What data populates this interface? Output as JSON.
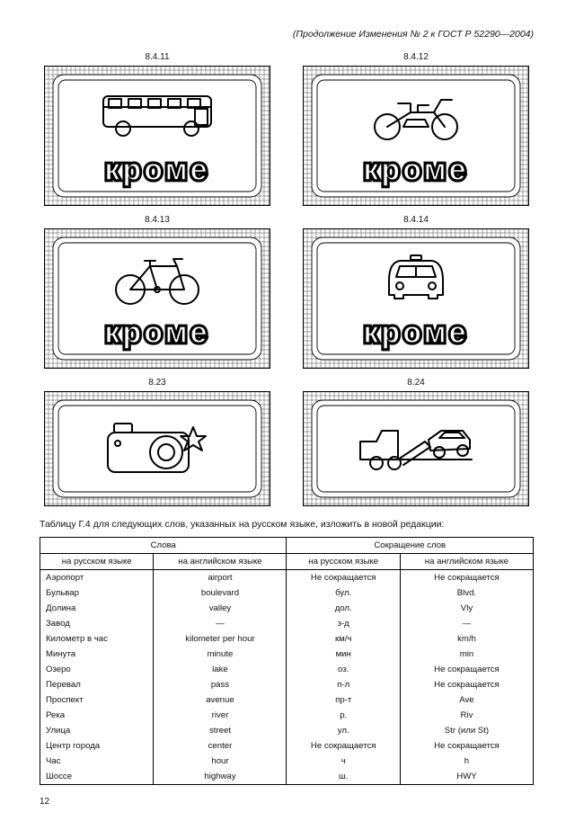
{
  "header": "(Продолжение Изменения № 2 к ГОСТ Р 52290—2004)",
  "page_number": "12",
  "signs": [
    {
      "id": "8.4.11",
      "type": "bus",
      "text": "кроме"
    },
    {
      "id": "8.4.12",
      "type": "moto",
      "text": "кроме"
    },
    {
      "id": "8.4.13",
      "type": "bike",
      "text": "кроме"
    },
    {
      "id": "8.4.14",
      "type": "car",
      "text": "кроме"
    },
    {
      "id": "8.23",
      "type": "camera",
      "text": ""
    },
    {
      "id": "8.24",
      "type": "towtruck",
      "text": ""
    }
  ],
  "table_intro": "Таблицу Г.4 для следующих слов, указанных на русском языке, изложить в новой редакции:",
  "table_headers": {
    "left": "Слова",
    "right": "Сокращение слов",
    "ru": "на русском языке",
    "en": "на английском языке"
  },
  "table_rows": [
    {
      "ru_word": "Аэропорт",
      "en_word": "airport",
      "ru_abbr": "Не сокращается",
      "en_abbr": "Не сокращается"
    },
    {
      "ru_word": "Бульвар",
      "en_word": "boulevard",
      "ru_abbr": "бул.",
      "en_abbr": "Blvd."
    },
    {
      "ru_word": "Долина",
      "en_word": "valley",
      "ru_abbr": "дол.",
      "en_abbr": "Vly"
    },
    {
      "ru_word": "Завод",
      "en_word": "—",
      "ru_abbr": "з-д",
      "en_abbr": "—"
    },
    {
      "ru_word": "Километр в час",
      "en_word": "kilometer per hour",
      "ru_abbr": "км/ч",
      "en_abbr": "km/h"
    },
    {
      "ru_word": "Минута",
      "en_word": "minute",
      "ru_abbr": "мин",
      "en_abbr": "min"
    },
    {
      "ru_word": "Озеро",
      "en_word": "lake",
      "ru_abbr": "оз.",
      "en_abbr": "Не сокращается"
    },
    {
      "ru_word": "Перевал",
      "en_word": "pass",
      "ru_abbr": "п-л",
      "en_abbr": "Не сокращается"
    },
    {
      "ru_word": "Проспект",
      "en_word": "avenue",
      "ru_abbr": "пр-т",
      "en_abbr": "Ave"
    },
    {
      "ru_word": "Река",
      "en_word": "river",
      "ru_abbr": "р.",
      "en_abbr": "Riv"
    },
    {
      "ru_word": "Улица",
      "en_word": "street",
      "ru_abbr": "ул.",
      "en_abbr": "Str (или St)"
    },
    {
      "ru_word": "Центр города",
      "en_word": "center",
      "ru_abbr": "Не сокращается",
      "en_abbr": "Не сокращается"
    },
    {
      "ru_word": "Час",
      "en_word": "hour",
      "ru_abbr": "ч",
      "en_abbr": "h"
    },
    {
      "ru_word": "Шоссе",
      "en_word": "highway",
      "ru_abbr": "ш.",
      "en_abbr": "HWY"
    }
  ],
  "svg_style": {
    "grid_stroke": "#000",
    "grid_stroke_width": 0.35,
    "grid_step": 5,
    "panel_fill": "#fff",
    "panel_stroke": "#000",
    "panel_stroke_width": 0.9,
    "icon_stroke": "#000",
    "icon_stroke_width": 2,
    "icon_fill": "none",
    "text_font": "Arial, Helvetica, sans-serif",
    "text_stroke_width": 1.4
  }
}
